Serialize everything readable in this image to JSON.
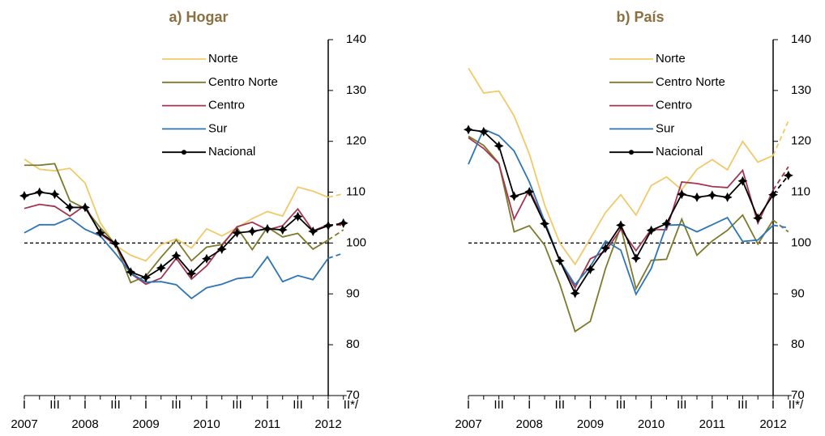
{
  "chart_data": [
    {
      "type": "line",
      "title": "a) Hogar",
      "categories": [
        "I",
        null,
        "III",
        null,
        "I",
        null,
        "III",
        null,
        "I",
        null,
        "III",
        null,
        "I",
        null,
        "III",
        null,
        "I",
        null,
        "III",
        null,
        "I",
        "II*/"
      ],
      "year_labels": [
        "2007",
        "2008",
        "2009",
        "2010",
        "2011",
        "2012"
      ],
      "ylim": [
        70,
        140
      ],
      "yticks": [
        70,
        80,
        90,
        100,
        110,
        120,
        130,
        140
      ],
      "reference_line": 100,
      "dashed_last_segment": true,
      "series": [
        {
          "name": "Norte",
          "color": "#f2c96a",
          "values": [
            116.5,
            114.5,
            114.2,
            114.7,
            111.8,
            104,
            99.5,
            97.6,
            96.5,
            99.7,
            100.8,
            99,
            102.8,
            101.4,
            103,
            104.8,
            106.2,
            105.3,
            111,
            110.2,
            109,
            109.7
          ]
        },
        {
          "name": "Centro Norte",
          "color": "#7d7a2c",
          "values": [
            115.3,
            115.3,
            115.6,
            108.3,
            106.8,
            103,
            99.8,
            92.2,
            93.5,
            97.2,
            100.6,
            96.5,
            99.2,
            99.7,
            103,
            98.7,
            103.1,
            101.2,
            101.9,
            98.8,
            100.6,
            102.6
          ]
        },
        {
          "name": "Centro",
          "color": "#a33550",
          "values": [
            106.8,
            107.6,
            107.2,
            105.3,
            107.4,
            101.8,
            99.6,
            94,
            91.9,
            93.1,
            97,
            92.9,
            95.5,
            99.5,
            103.2,
            104.1,
            102.6,
            103.4,
            106.7,
            102.4,
            103.6,
            103.5
          ]
        },
        {
          "name": "Sur",
          "color": "#2e75b6",
          "values": [
            102,
            103.6,
            103.6,
            104.9,
            102.7,
            101.4,
            97.9,
            94.1,
            92.3,
            92.4,
            91.8,
            89.1,
            91.2,
            91.9,
            93,
            93.3,
            97.3,
            92.4,
            93.6,
            92.8,
            97,
            98
          ]
        },
        {
          "name": "Nacional",
          "color": "#000000",
          "marker": "diamond",
          "values": [
            109.3,
            110,
            109.6,
            107,
            107,
            102,
            99.9,
            94.3,
            93.2,
            95.1,
            97.5,
            94,
            96.9,
            98.8,
            102,
            102.3,
            102.8,
            102.6,
            105.2,
            102.3,
            103.4,
            103.9
          ]
        }
      ]
    },
    {
      "type": "line",
      "title": "b) País",
      "categories": [
        "I",
        null,
        "III",
        null,
        "I",
        null,
        "III",
        null,
        "I",
        null,
        "III",
        null,
        "I",
        null,
        "III",
        null,
        "I",
        null,
        "III",
        null,
        "I",
        "II*/"
      ],
      "year_labels": [
        "2007",
        "2008",
        "2009",
        "2010",
        "2011",
        "2012"
      ],
      "ylim": [
        70,
        140
      ],
      "yticks": [
        70,
        80,
        90,
        100,
        110,
        120,
        130,
        140
      ],
      "reference_line": 100,
      "dashed_last_segment": true,
      "series": [
        {
          "name": "Norte",
          "color": "#f2c96a",
          "values": [
            134.4,
            129.5,
            129.9,
            125,
            117.5,
            107.5,
            100,
            95.8,
            100.9,
            106,
            109.5,
            105.5,
            111.3,
            113,
            110.5,
            114.5,
            116.4,
            114.4,
            120,
            115.9,
            117.2,
            124
          ]
        },
        {
          "name": "Centro Norte",
          "color": "#7d7a2c",
          "values": [
            121,
            119.2,
            115.7,
            102.2,
            103.4,
            99.6,
            91.9,
            82.6,
            84.6,
            95,
            103.2,
            91,
            96.6,
            96.8,
            104.7,
            97.6,
            100.4,
            102.5,
            105.5,
            99.8,
            104.5,
            102.2
          ]
        },
        {
          "name": "Centro",
          "color": "#a33550",
          "values": [
            120.7,
            118.6,
            115.6,
            104.7,
            110.5,
            104.2,
            96.5,
            91.2,
            96.9,
            98.4,
            102.7,
            98.5,
            102.7,
            102.6,
            112,
            111.7,
            111.1,
            110.9,
            114.3,
            103.9,
            110.4,
            115
          ]
        },
        {
          "name": "Sur",
          "color": "#2e75b6",
          "values": [
            115.5,
            122.4,
            121.1,
            118.1,
            112,
            104.3,
            96.5,
            91.8,
            95.4,
            100.4,
            98.6,
            89.9,
            95,
            103.5,
            103.6,
            102.2,
            103.6,
            105,
            100.3,
            100.6,
            103.5,
            103
          ]
        },
        {
          "name": "Nacional",
          "color": "#000000",
          "marker": "diamond",
          "values": [
            122.3,
            121.9,
            119.1,
            109.2,
            110.1,
            103.8,
            96.5,
            90.1,
            94.8,
            99,
            103.5,
            97,
            102.5,
            103.8,
            109.6,
            109,
            109.4,
            109,
            112.2,
            104.9,
            109.5,
            113.3
          ]
        }
      ]
    }
  ]
}
